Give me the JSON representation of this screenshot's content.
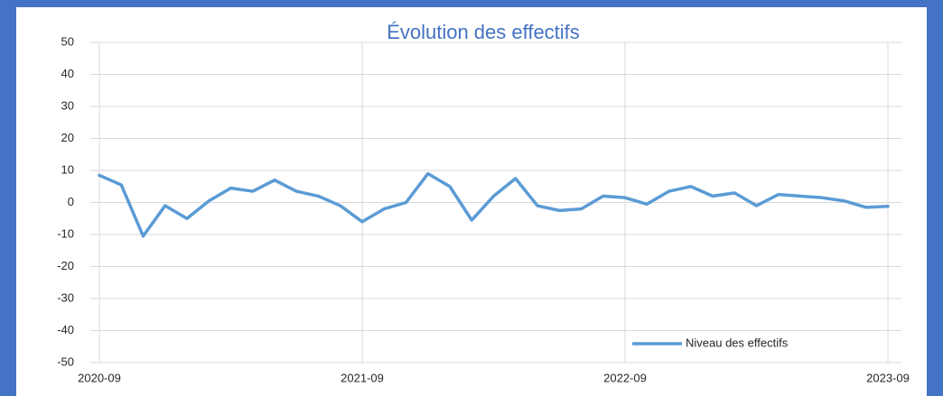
{
  "chart_data": {
    "type": "line",
    "title": "Évolution des effectifs",
    "categories": [
      "2020-09",
      null,
      null,
      null,
      null,
      null,
      null,
      null,
      null,
      null,
      null,
      null,
      "2021-09",
      null,
      null,
      null,
      null,
      null,
      null,
      null,
      null,
      null,
      null,
      null,
      "2022-09",
      null,
      null,
      null,
      null,
      null,
      null,
      null,
      null,
      null,
      null,
      null,
      "2023-09"
    ],
    "series": [
      {
        "name": "Niveau des effectifs",
        "color": "#5b9bd5",
        "values": [
          8.5,
          5.5,
          -10.5,
          -1,
          -5,
          0.5,
          4.5,
          3.5,
          7,
          3.5,
          2,
          -1,
          -6,
          -2,
          0,
          9,
          5,
          -5.5,
          2,
          7.5,
          -1,
          -2.5,
          -2,
          2,
          1.5,
          -0.5,
          3.5,
          5,
          2,
          3,
          -1,
          2.5,
          2,
          1.5,
          0.5,
          -1.5,
          -1.2
        ]
      }
    ],
    "ylim": [
      -50,
      50
    ],
    "yticks": [
      -50,
      -40,
      -30,
      -20,
      -10,
      0,
      10,
      20,
      30,
      40,
      50
    ],
    "grid": true,
    "legend": "bottom-right"
  }
}
